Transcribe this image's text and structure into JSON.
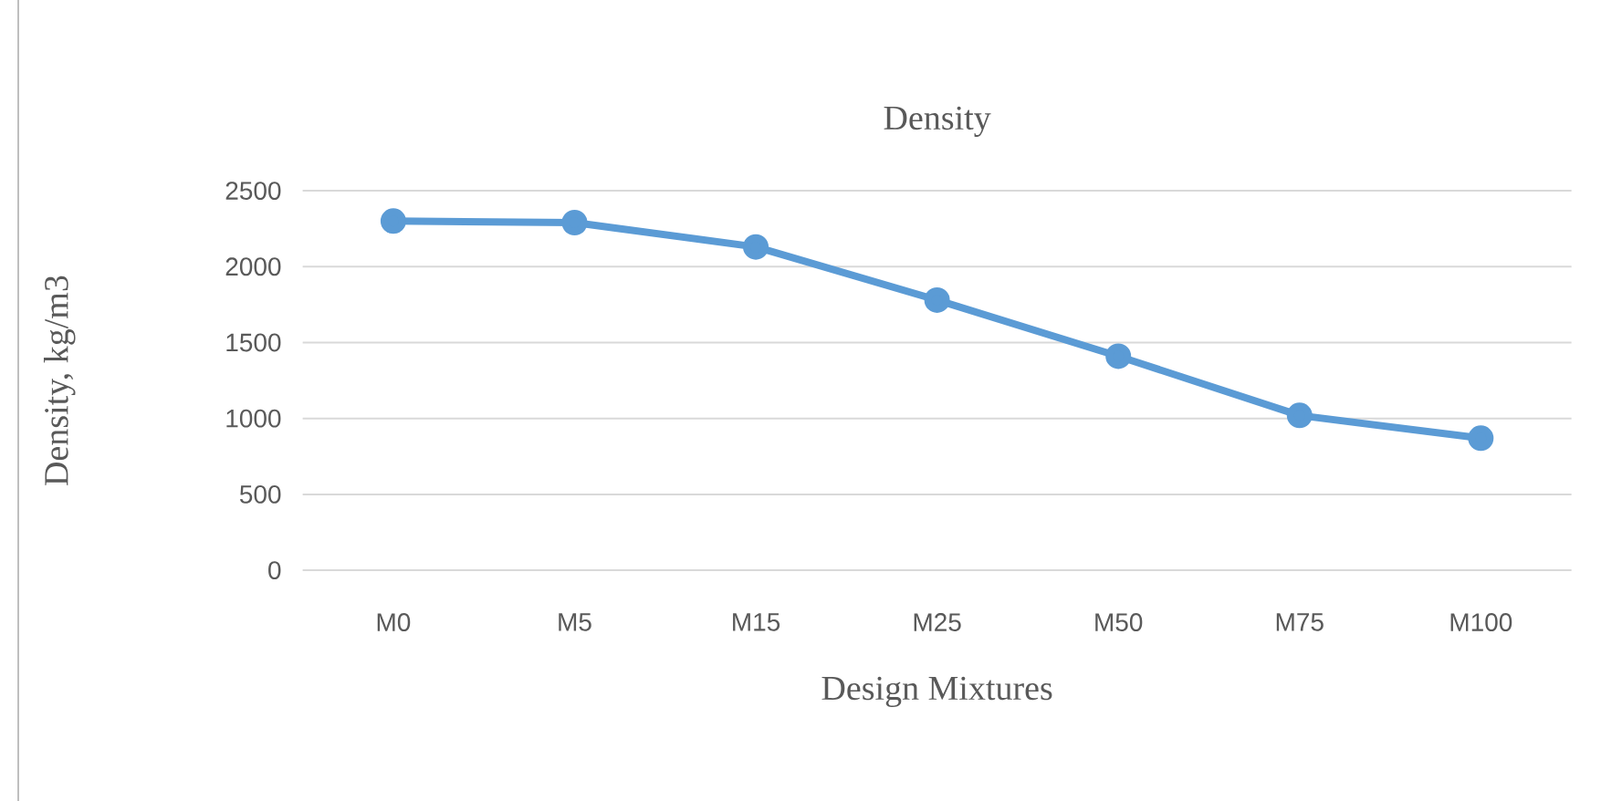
{
  "chart_data": {
    "type": "line",
    "title": "Density",
    "xlabel": "Design Mixtures",
    "ylabel": "Density, kg/m3",
    "categories": [
      "M0",
      "M5",
      "M15",
      "M25",
      "M50",
      "M75",
      "M100"
    ],
    "series": [
      {
        "color": "#5b9bd5",
        "values": [
          2300,
          2290,
          2130,
          1780,
          1410,
          1020,
          870
        ]
      }
    ],
    "ylim": [
      0,
      2500
    ],
    "yticks": [
      0,
      500,
      1000,
      1500,
      2000,
      2500
    ],
    "grid": "y",
    "marker": "circle",
    "line_style": "solid"
  }
}
